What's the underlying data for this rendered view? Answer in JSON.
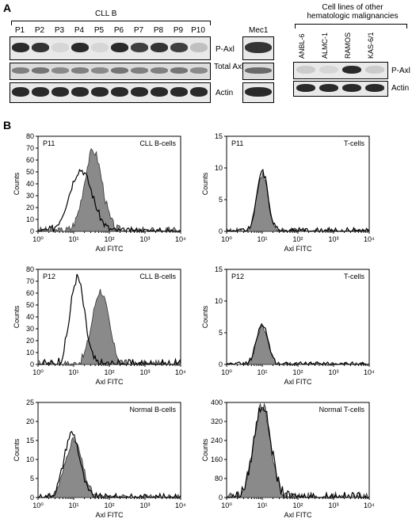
{
  "figure": {
    "panel_a_label": "A",
    "panel_b_label": "B"
  },
  "panel_a": {
    "cll_group_label": "CLL B",
    "lanes": [
      "P1",
      "P2",
      "P3",
      "P4",
      "P5",
      "P6",
      "P7",
      "P8",
      "P9",
      "P10"
    ],
    "row_labels": [
      "P-Axl",
      "Total Axl",
      "Actin"
    ],
    "mec1_label": "Mec1",
    "other_group_title_line1": "Cell lines of other",
    "other_group_title_line2": "hematologic malignancies",
    "other_lanes": [
      "ANBL-6",
      "ALMC-1",
      "RAMOS",
      "KAS-6/1"
    ],
    "other_row_labels": [
      "P-Axl",
      "Actin"
    ],
    "band_intensity": {
      "p_axl": [
        0.9,
        0.85,
        0.1,
        0.9,
        0.1,
        0.9,
        0.8,
        0.85,
        0.8,
        0.2
      ],
      "total_axl": [
        0.5,
        0.55,
        0.45,
        0.5,
        0.45,
        0.55,
        0.5,
        0.5,
        0.55,
        0.45
      ],
      "actin": [
        0.9,
        0.9,
        0.9,
        0.9,
        0.9,
        0.9,
        0.9,
        0.9,
        0.9,
        0.9
      ],
      "mec1": [
        0.85,
        0.6,
        0.9
      ],
      "other_p_axl": [
        0.15,
        0.1,
        0.9,
        0.15
      ],
      "other_actin": [
        0.9,
        0.9,
        0.9,
        0.9
      ]
    }
  },
  "panel_b": {
    "y_label": "Counts",
    "x_label": "Axl FITC",
    "x_ticks": [
      "10⁰",
      "10¹",
      "10²",
      "10³",
      "10⁴"
    ],
    "histograms": [
      {
        "sample": "P11",
        "population": "CLL B-cells",
        "yticks": [
          0,
          10,
          20,
          30,
          40,
          50,
          60,
          70,
          80
        ],
        "ymax": 80,
        "open_peak": [
          1.2,
          52,
          0.32
        ],
        "filled_peak": [
          1.55,
          68,
          0.25
        ]
      },
      {
        "sample": "P11",
        "population": "T-cells",
        "yticks": [
          0,
          5,
          10,
          15
        ],
        "ymax": 15,
        "open_peak": [
          1.0,
          9.5,
          0.16
        ],
        "filled_peak": [
          1.0,
          9.0,
          0.16
        ]
      },
      {
        "sample": "P12",
        "population": "CLL B-cells",
        "yticks": [
          0,
          10,
          20,
          30,
          40,
          50,
          60,
          70,
          80
        ],
        "ymax": 80,
        "open_peak": [
          1.1,
          73,
          0.2
        ],
        "filled_peak": [
          1.75,
          62,
          0.23
        ]
      },
      {
        "sample": "P12",
        "population": "T-cells",
        "yticks": [
          0,
          5,
          10,
          15
        ],
        "ymax": 15,
        "open_peak": [
          1.0,
          6.5,
          0.16
        ],
        "filled_peak": [
          1.0,
          6.0,
          0.16
        ]
      },
      {
        "sample": "",
        "population": "Normal B-cells",
        "yticks": [
          0,
          5,
          10,
          15,
          20,
          25
        ],
        "ymax": 25,
        "open_peak": [
          0.95,
          17,
          0.22
        ],
        "filled_peak": [
          1.0,
          15,
          0.24
        ]
      },
      {
        "sample": "",
        "population": "Normal T-cells",
        "yticks": [
          0,
          80,
          160,
          240,
          320,
          400
        ],
        "ymax": 400,
        "open_peak": [
          1.0,
          390,
          0.24
        ],
        "filled_peak": [
          1.0,
          385,
          0.24
        ]
      }
    ]
  }
}
